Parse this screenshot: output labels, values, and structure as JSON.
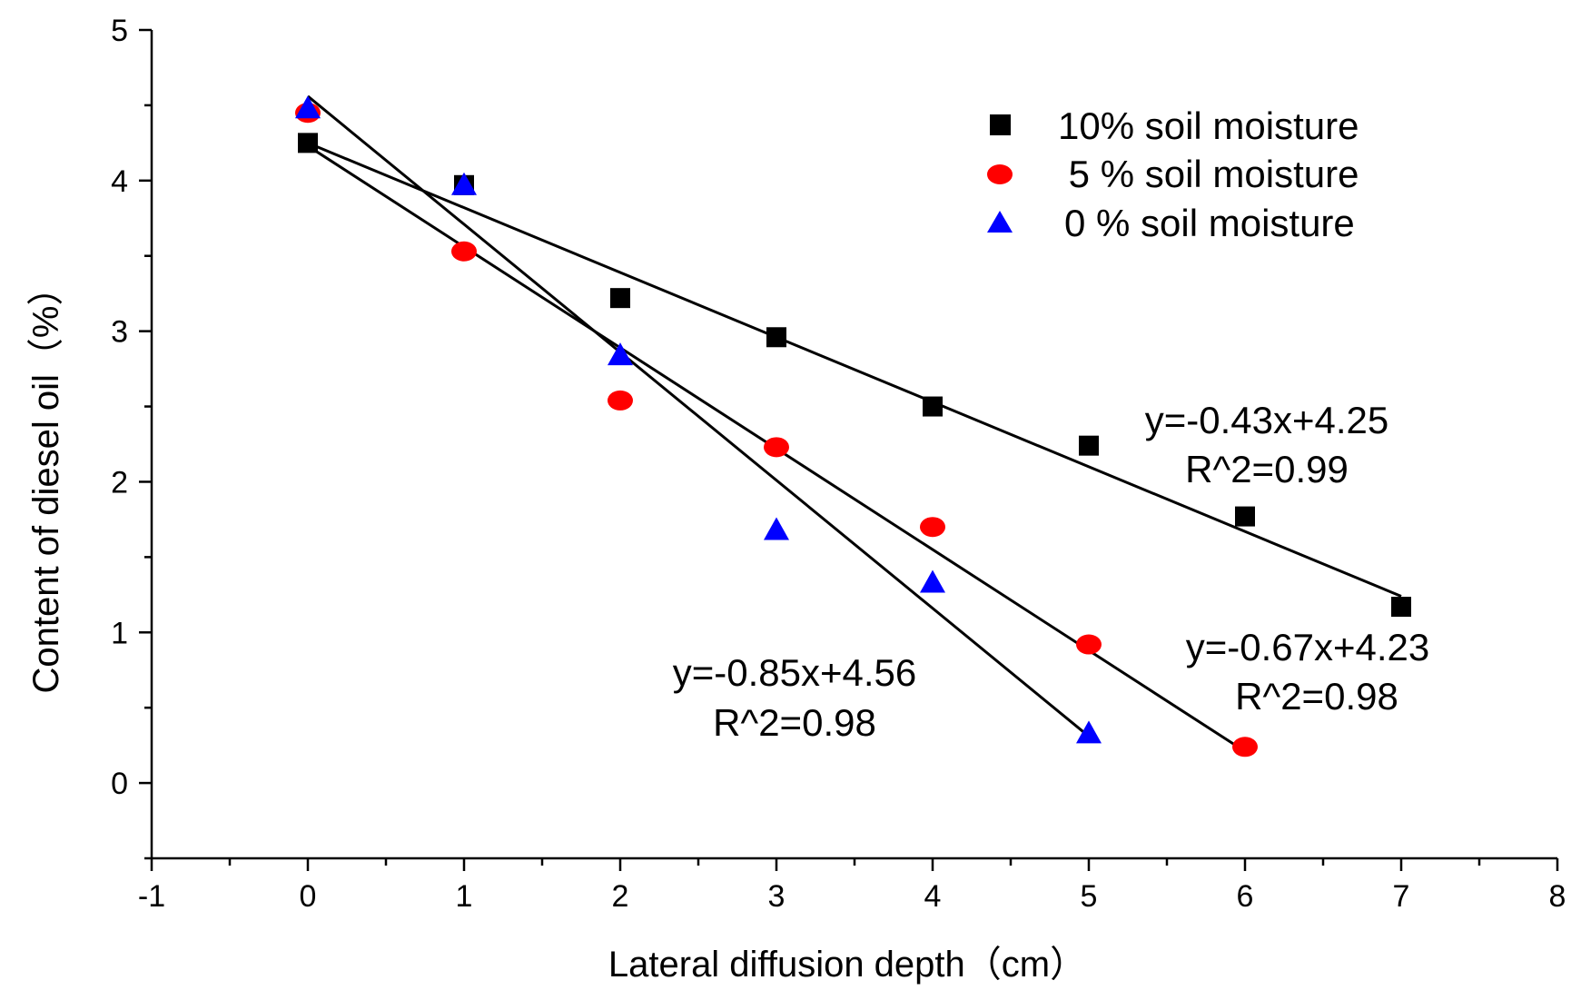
{
  "chart_data": {
    "type": "scatter",
    "title": "",
    "xlabel": "Lateral diffusion depth（cm）",
    "ylabel": "Content of diesel oil（%）",
    "xlim": [
      -1,
      8
    ],
    "ylim": [
      -0.5,
      5
    ],
    "xticks": [
      "-1",
      "0",
      "1",
      "2",
      "3",
      "4",
      "5",
      "6",
      "7",
      "8"
    ],
    "yticks": [
      "0",
      "1",
      "2",
      "3",
      "4",
      "5"
    ],
    "legend_position": "top-right",
    "series": [
      {
        "name": "10% soil moisture",
        "marker": "square",
        "color": "#000000",
        "x": [
          0,
          1,
          2,
          3,
          4,
          5,
          6,
          7
        ],
        "y": [
          4.25,
          3.97,
          3.22,
          2.96,
          2.5,
          2.24,
          1.77,
          1.17
        ],
        "fit": {
          "slope": -0.43,
          "intercept": 4.25,
          "x_range": [
            0,
            7
          ],
          "equation": "y=-0.43x+4.25",
          "r2": "R^2=0.99"
        }
      },
      {
        "name": " 5 % soil moisture",
        "marker": "circle",
        "color": "#ff0000",
        "x": [
          0,
          1,
          2,
          3,
          4,
          5,
          6
        ],
        "y": [
          4.45,
          3.53,
          2.54,
          2.23,
          1.7,
          0.92,
          0.24
        ],
        "fit": {
          "slope": -0.67,
          "intercept": 4.23,
          "x_range": [
            0,
            6
          ],
          "equation": "y=-0.67x+4.23",
          "r2": "R^2=0.98"
        }
      },
      {
        "name": "0 % soil moisture",
        "marker": "triangle",
        "color": "#0000ff",
        "x": [
          0,
          1,
          2,
          3,
          4,
          5
        ],
        "y": [
          4.48,
          3.97,
          2.84,
          1.68,
          1.33,
          0.33
        ],
        "fit": {
          "slope": -0.85,
          "intercept": 4.56,
          "x_range": [
            0,
            5
          ],
          "equation": "y=-0.85x+4.56",
          "r2": "R^2=0.98"
        }
      }
    ]
  }
}
